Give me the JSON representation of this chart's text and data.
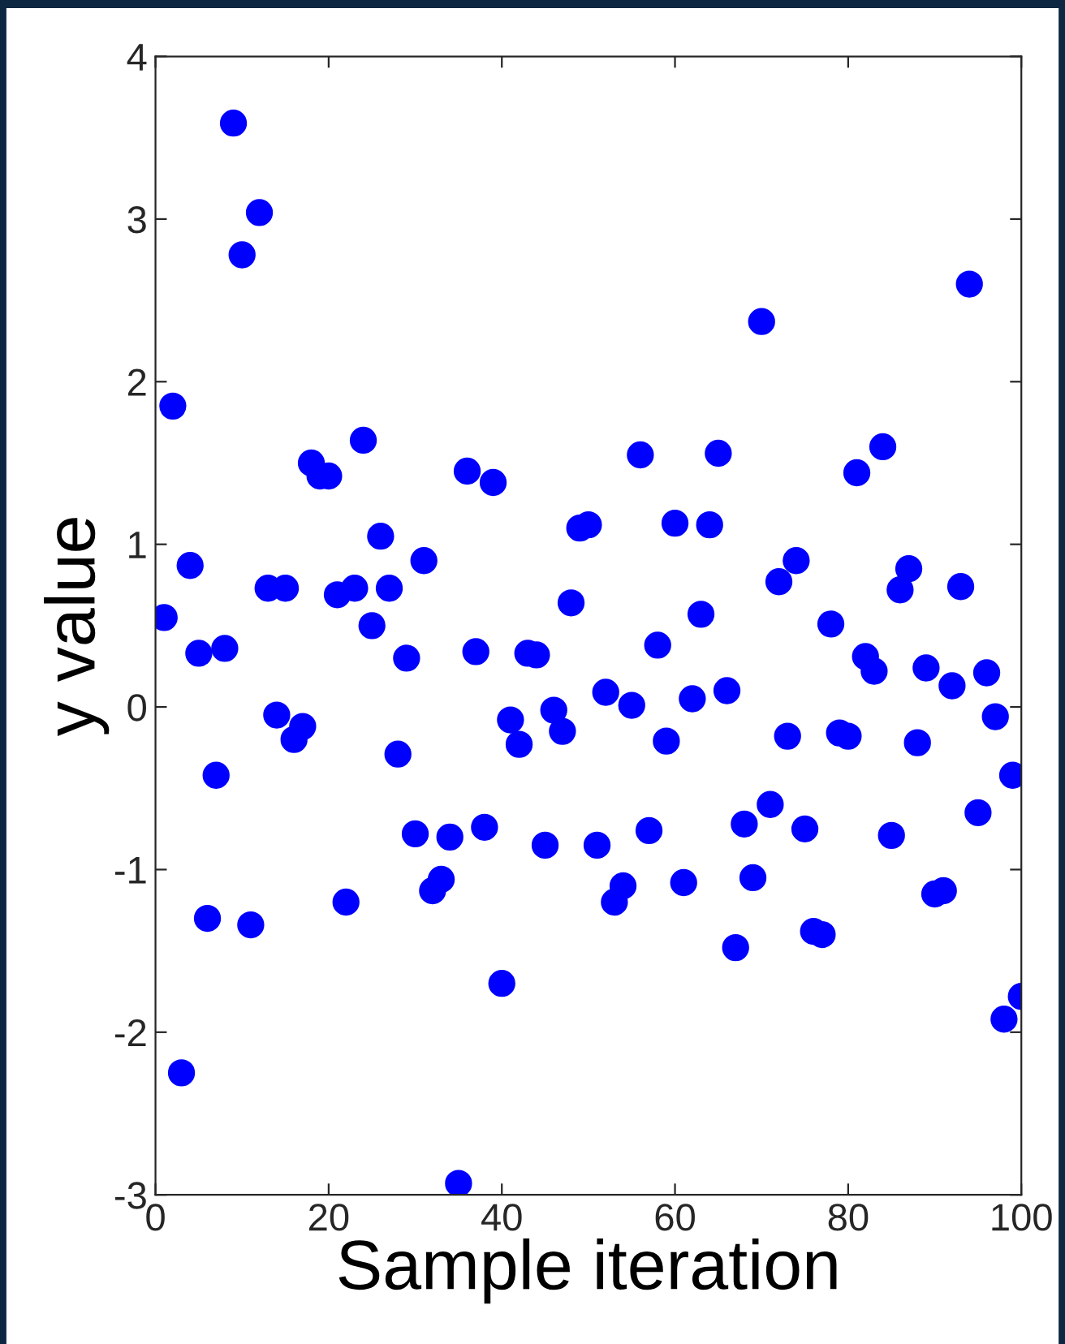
{
  "chart_data": {
    "type": "scatter",
    "xlabel": "Sample iteration",
    "ylabel": "y value",
    "x": [
      1,
      2,
      3,
      4,
      5,
      6,
      7,
      8,
      9,
      10,
      11,
      12,
      13,
      14,
      15,
      16,
      17,
      18,
      19,
      20,
      21,
      22,
      23,
      24,
      25,
      26,
      27,
      28,
      29,
      30,
      31,
      32,
      33,
      34,
      35,
      36,
      37,
      38,
      39,
      40,
      41,
      42,
      43,
      44,
      45,
      46,
      47,
      48,
      49,
      50,
      51,
      52,
      53,
      54,
      55,
      56,
      57,
      58,
      59,
      60,
      61,
      62,
      63,
      64,
      65,
      66,
      67,
      68,
      69,
      70,
      71,
      72,
      73,
      74,
      75,
      76,
      77,
      78,
      79,
      80,
      81,
      82,
      83,
      84,
      85,
      86,
      87,
      88,
      89,
      90,
      91,
      92,
      93,
      94,
      95,
      96,
      97,
      98,
      99,
      100
    ],
    "series": [
      {
        "color": "#0000ff",
        "values": [
          0.55,
          1.85,
          -2.25,
          0.87,
          0.33,
          -1.3,
          -0.42,
          0.36,
          3.59,
          2.78,
          -1.34,
          3.04,
          0.73,
          -0.05,
          0.73,
          -0.2,
          -0.12,
          1.5,
          1.42,
          1.42,
          0.69,
          -1.2,
          0.73,
          1.64,
          0.5,
          1.05,
          0.73,
          -0.29,
          0.3,
          -0.78,
          0.9,
          -1.13,
          -1.06,
          -0.8,
          -2.93,
          1.45,
          0.34,
          -0.74,
          1.38,
          -1.7,
          -0.08,
          -0.23,
          0.33,
          0.32,
          -0.85,
          -0.02,
          -0.15,
          0.64,
          1.1,
          1.12,
          -0.85,
          0.09,
          -1.2,
          -1.1,
          0.01,
          1.55,
          -0.76,
          0.38,
          -0.21,
          1.13,
          -1.08,
          0.05,
          0.57,
          1.12,
          1.56,
          0.1,
          -1.48,
          -0.72,
          -1.05,
          2.37,
          -0.6,
          0.77,
          -0.18,
          0.9,
          -0.75,
          -1.38,
          -1.4,
          0.51,
          -0.16,
          -0.18,
          1.44,
          0.31,
          0.22,
          1.6,
          -0.79,
          0.72,
          0.85,
          -0.22,
          0.24,
          -1.15,
          -1.13,
          0.13,
          0.74,
          2.6,
          -0.65,
          0.21,
          -0.06,
          -1.92,
          -0.42,
          -1.78
        ]
      }
    ],
    "marker": "circle",
    "grid": false,
    "legend": false,
    "xlim": [
      0,
      100
    ],
    "xticks": [
      0,
      20,
      40,
      60,
      80,
      100
    ],
    "ylim": [
      -3,
      4
    ],
    "yticks": [
      {
        "value": -3,
        "label": "-3"
      },
      {
        "value": -2,
        "label": "-2"
      },
      {
        "value": -1,
        "label": "-1"
      },
      0,
      1,
      2,
      3,
      4
    ]
  }
}
